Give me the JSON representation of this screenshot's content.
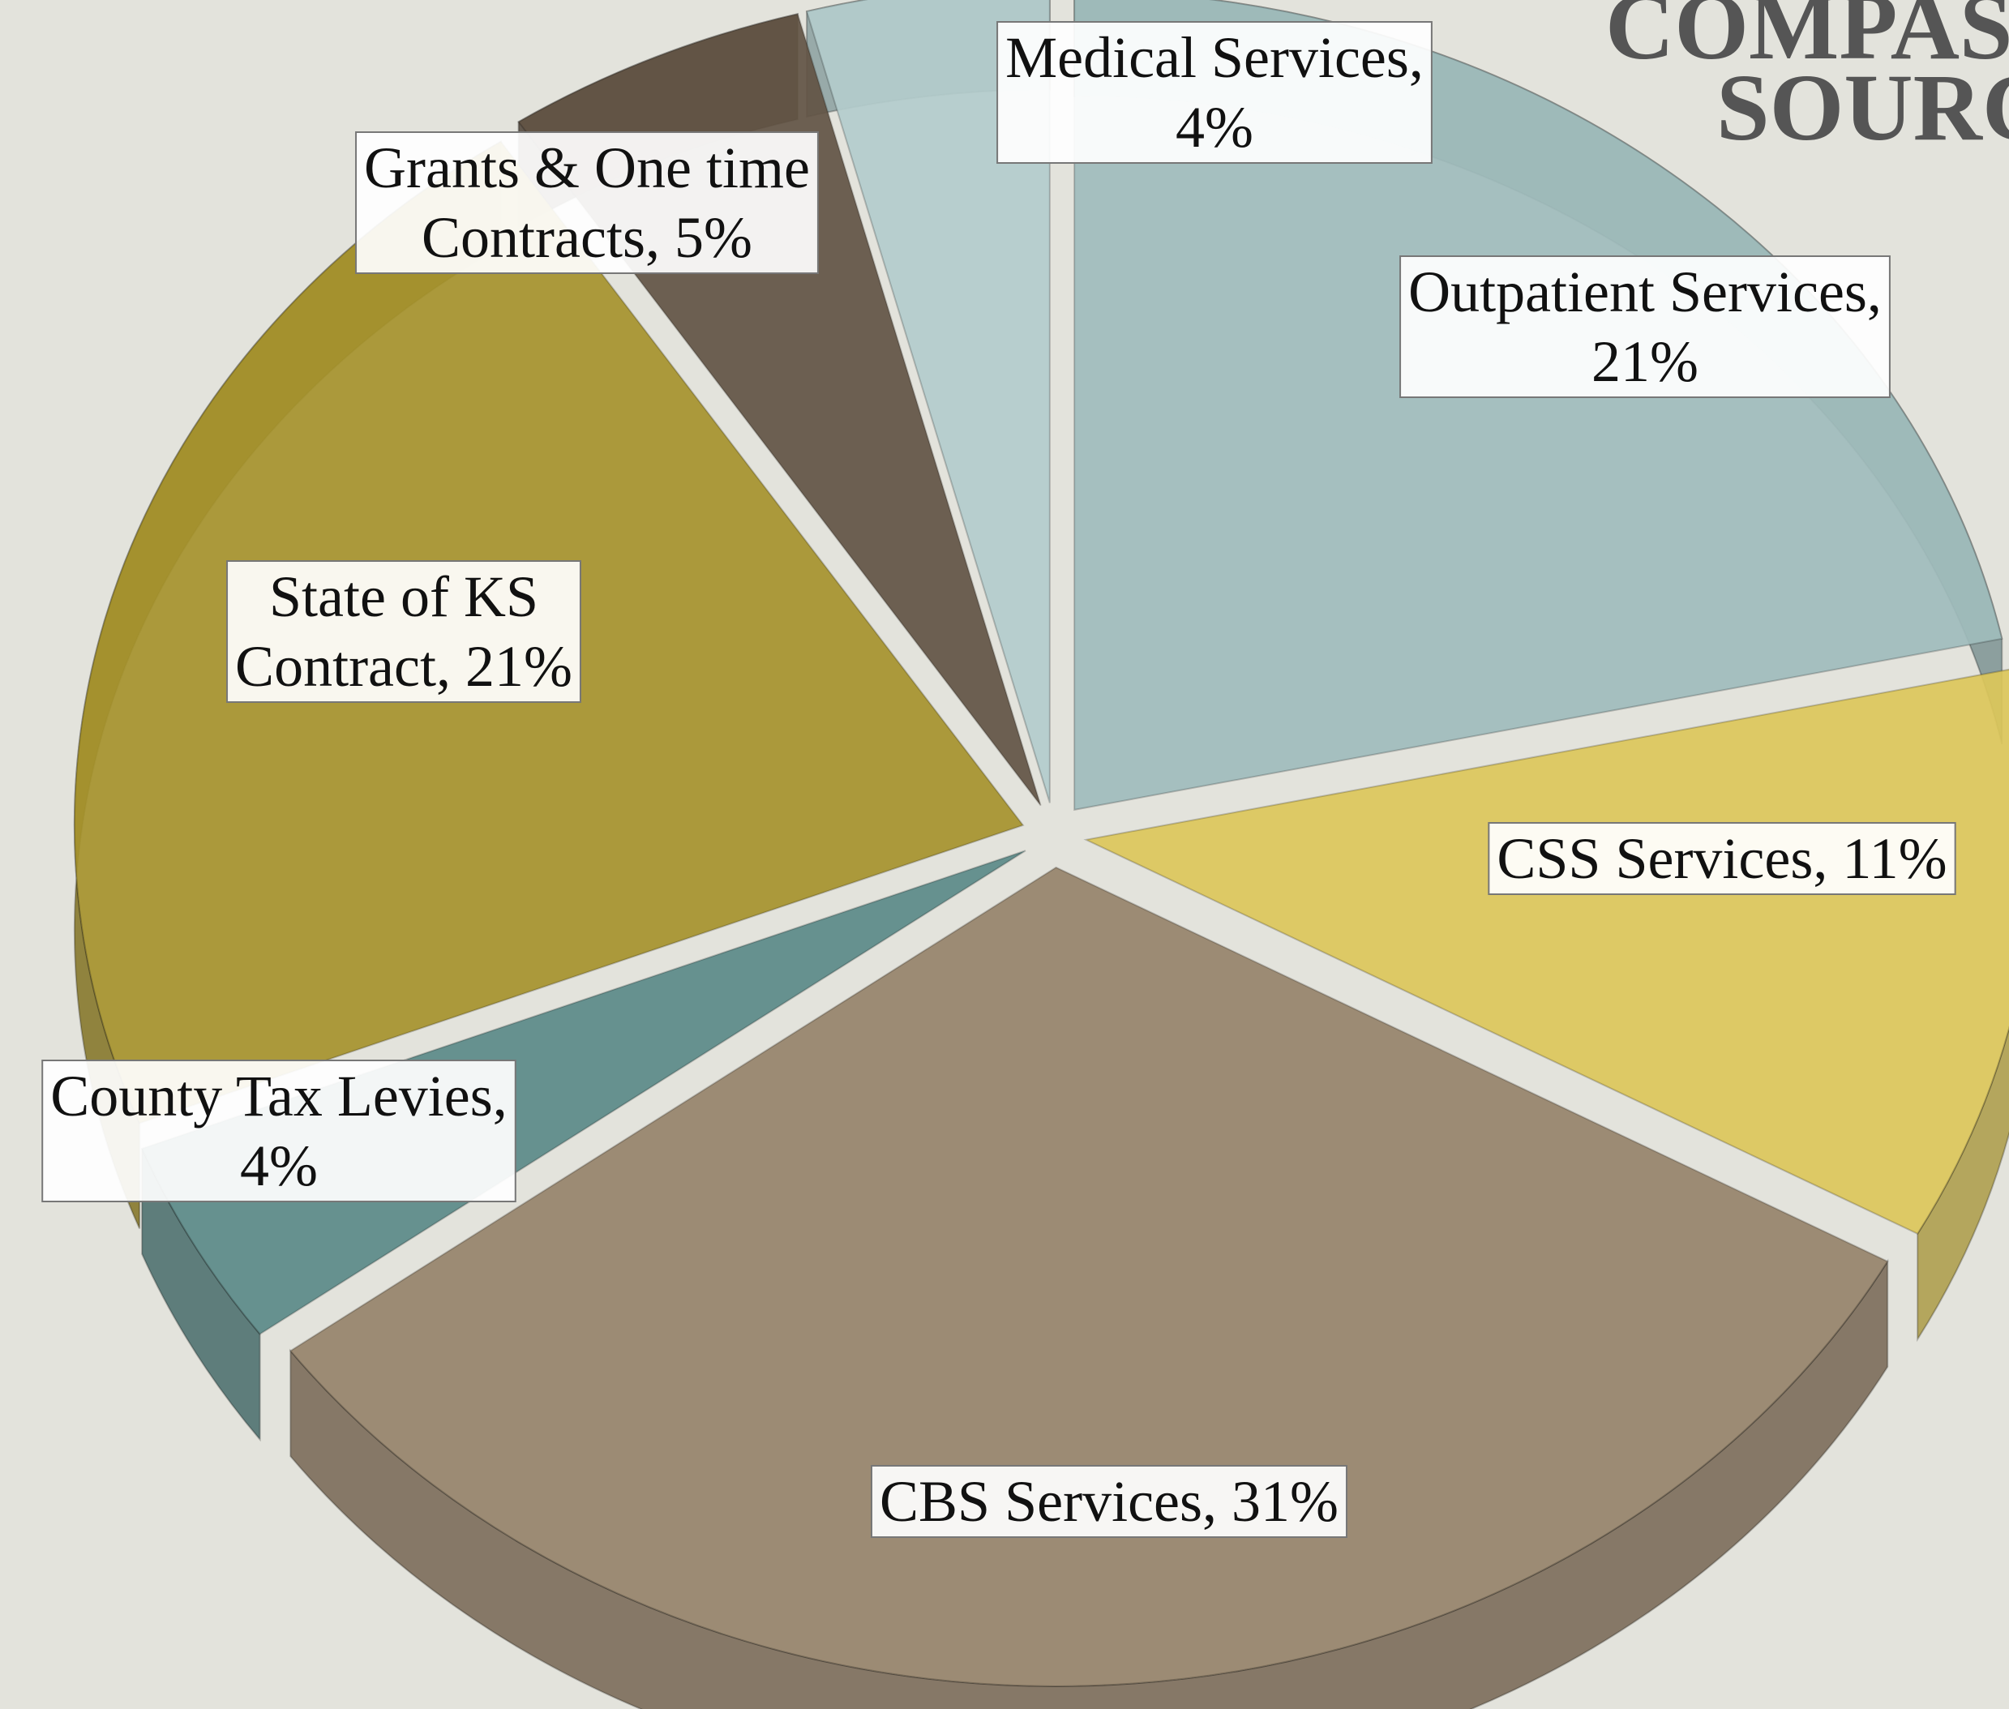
{
  "chart_data": {
    "type": "pie",
    "title": [
      "COMPASS",
      "SOURC"
    ],
    "values": [
      21,
      11,
      31,
      4,
      21,
      5,
      4
    ],
    "value_labels": [
      [
        "Outpatient Services,",
        "21%"
      ],
      [
        "CSS Services, 11%"
      ],
      [
        "CBS Services, 31%"
      ],
      [
        "County Tax Levies,",
        "4%"
      ],
      [
        "State of KS",
        "Contract, 21%"
      ],
      [
        "Grants & One time",
        "Contracts, 5%"
      ],
      [
        "Medical Services,",
        "4%"
      ]
    ],
    "colors": [
      "#a0bcbc",
      "#dcc75a",
      "#96836a",
      "#5b8a88",
      "#a6922d",
      "#625444",
      "#b3cccc"
    ]
  }
}
